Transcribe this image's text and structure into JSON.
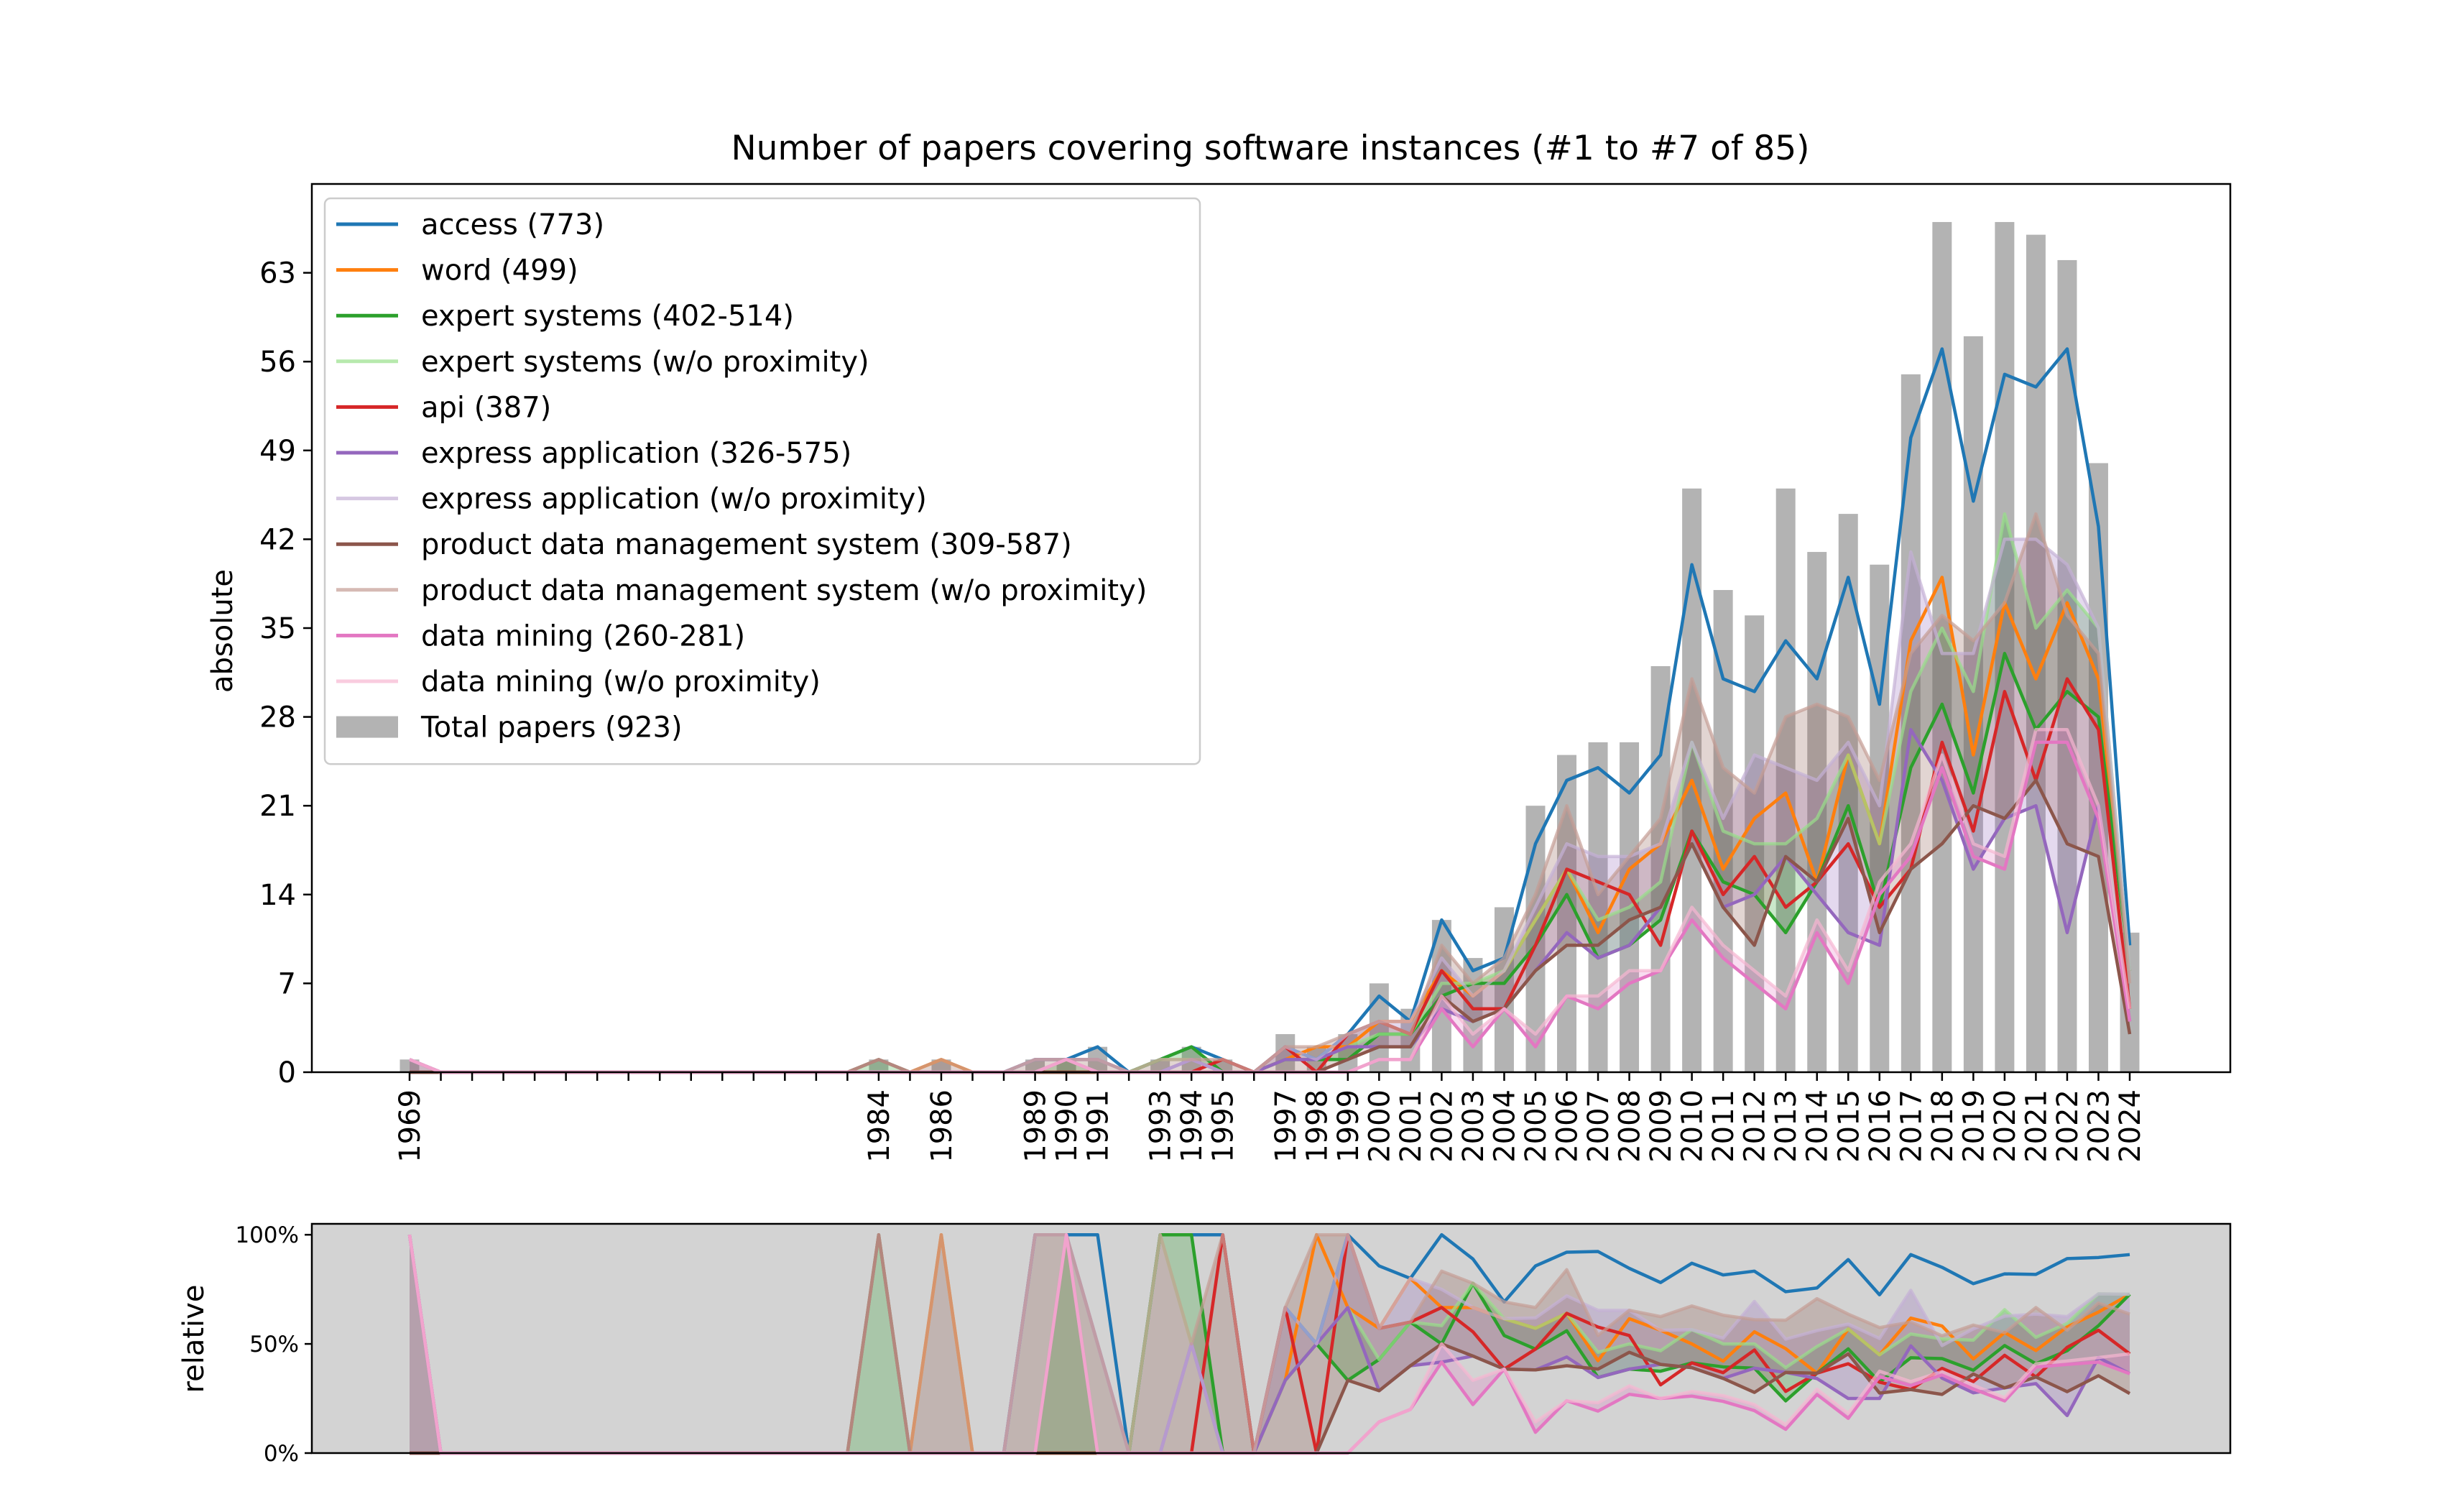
{
  "chart_data": [
    {
      "type": "line",
      "title": "Number of papers covering software instances (#1 to #7 of 85)",
      "ylabel": "absolute",
      "ylim": [
        0,
        70
      ],
      "yticks": [
        0,
        7,
        14,
        21,
        28,
        35,
        42,
        49,
        56,
        63
      ],
      "x_labels": [
        "1969",
        "1984",
        "1986",
        "1989",
        "1990",
        "1991",
        "1993",
        "1994",
        "1995",
        "1997",
        "1998",
        "1999",
        "2000",
        "2001",
        "2002",
        "2003",
        "2004",
        "2005",
        "2006",
        "2007",
        "2008",
        "2009",
        "2010",
        "2011",
        "2012",
        "2013",
        "2014",
        "2015",
        "2016",
        "2017",
        "2018",
        "2019",
        "2020",
        "2021",
        "2022",
        "2023",
        "2024"
      ],
      "x": [
        1969,
        1970,
        1971,
        1972,
        1973,
        1974,
        1975,
        1976,
        1977,
        1978,
        1979,
        1980,
        1981,
        1982,
        1983,
        1984,
        1985,
        1986,
        1987,
        1988,
        1989,
        1990,
        1991,
        1992,
        1993,
        1994,
        1995,
        1996,
        1997,
        1998,
        1999,
        2000,
        2001,
        2002,
        2003,
        2004,
        2005,
        2006,
        2007,
        2008,
        2009,
        2010,
        2011,
        2012,
        2013,
        2014,
        2015,
        2016,
        2017,
        2018,
        2019,
        2020,
        2021,
        2022,
        2023,
        2024
      ],
      "bars": {
        "name": "Total papers (923)",
        "color": "#808080",
        "values": [
          1,
          0,
          0,
          0,
          0,
          0,
          0,
          0,
          0,
          0,
          0,
          0,
          0,
          0,
          0,
          1,
          0,
          1,
          0,
          0,
          1,
          1,
          2,
          0,
          1,
          2,
          1,
          0,
          3,
          2,
          3,
          7,
          5,
          12,
          9,
          13,
          21,
          25,
          26,
          26,
          32,
          46,
          38,
          36,
          46,
          41,
          44,
          40,
          55,
          67,
          58,
          67,
          66,
          64,
          48,
          11
        ]
      },
      "series": [
        {
          "name": "access (773)",
          "color": "#1f77b4",
          "values": [
            1,
            0,
            0,
            0,
            0,
            0,
            0,
            0,
            0,
            0,
            0,
            0,
            0,
            0,
            0,
            0,
            0,
            0,
            0,
            0,
            1,
            1,
            2,
            0,
            1,
            2,
            1,
            0,
            2,
            1,
            3,
            6,
            4,
            12,
            8,
            9,
            18,
            23,
            24,
            22,
            25,
            40,
            31,
            30,
            34,
            31,
            39,
            29,
            50,
            57,
            45,
            55,
            54,
            57,
            43,
            10
          ]
        },
        {
          "name": "word (499)",
          "color": "#ff7f0e",
          "values": [
            0,
            0,
            0,
            0,
            0,
            0,
            0,
            0,
            0,
            0,
            0,
            0,
            0,
            0,
            0,
            0,
            0,
            1,
            0,
            0,
            0,
            0,
            0,
            0,
            0,
            0,
            0,
            0,
            1,
            2,
            2,
            4,
            4,
            8,
            6,
            8,
            12,
            16,
            11,
            16,
            18,
            23,
            16,
            20,
            22,
            15,
            25,
            18,
            34,
            39,
            25,
            37,
            31,
            37,
            31,
            8
          ]
        },
        {
          "name": "expert systems (402-514)",
          "color": "#2ca02c",
          "values": [
            0,
            0,
            0,
            0,
            0,
            0,
            0,
            0,
            0,
            0,
            0,
            0,
            0,
            0,
            0,
            0,
            0,
            0,
            0,
            0,
            0,
            0,
            0,
            0,
            1,
            2,
            0,
            0,
            1,
            1,
            1,
            3,
            3,
            6,
            7,
            7,
            10,
            14,
            9,
            10,
            12,
            19,
            15,
            14,
            11,
            15,
            21,
            13,
            24,
            29,
            22,
            33,
            27,
            30,
            28,
            8
          ]
        },
        {
          "name": "expert systems (w/o proximity)",
          "color": "#98df8a",
          "alpha": 0.7,
          "values": [
            0,
            0,
            0,
            0,
            0,
            0,
            0,
            0,
            0,
            0,
            0,
            0,
            0,
            0,
            0,
            1,
            0,
            0,
            0,
            0,
            0,
            1,
            0,
            0,
            1,
            1,
            0,
            0,
            1,
            1,
            2,
            3,
            3,
            7,
            7,
            8,
            12,
            16,
            12,
            13,
            15,
            26,
            19,
            18,
            18,
            20,
            25,
            18,
            30,
            35,
            30,
            44,
            35,
            38,
            35,
            8
          ]
        },
        {
          "name": "api (387)",
          "color": "#d62728",
          "values": [
            0,
            0,
            0,
            0,
            0,
            0,
            0,
            0,
            0,
            0,
            0,
            0,
            0,
            0,
            0,
            0,
            0,
            0,
            0,
            0,
            0,
            0,
            0,
            0,
            0,
            0,
            1,
            0,
            2,
            0,
            3,
            4,
            3,
            8,
            5,
            5,
            10,
            16,
            15,
            14,
            10,
            19,
            14,
            17,
            13,
            15,
            18,
            13,
            16,
            26,
            19,
            30,
            23,
            31,
            27,
            5
          ]
        },
        {
          "name": "express application (326-575)",
          "color": "#9467bd",
          "values": [
            0,
            0,
            0,
            0,
            0,
            0,
            0,
            0,
            0,
            0,
            0,
            0,
            0,
            0,
            0,
            0,
            0,
            0,
            0,
            0,
            1,
            1,
            1,
            0,
            0,
            1,
            0,
            0,
            1,
            1,
            2,
            2,
            2,
            5,
            4,
            5,
            8,
            11,
            9,
            10,
            13,
            18,
            13,
            14,
            17,
            14,
            11,
            10,
            27,
            23,
            16,
            20,
            21,
            11,
            21,
            4
          ]
        },
        {
          "name": "express application (w/o proximity)",
          "color": "#c5b0d5",
          "alpha": 0.7,
          "values": [
            1,
            0,
            0,
            0,
            0,
            0,
            0,
            0,
            0,
            0,
            0,
            0,
            0,
            0,
            0,
            0,
            0,
            0,
            0,
            0,
            1,
            1,
            1,
            0,
            0,
            1,
            0,
            0,
            2,
            1,
            3,
            4,
            4,
            9,
            6,
            8,
            13,
            18,
            17,
            17,
            18,
            26,
            20,
            25,
            24,
            23,
            26,
            21,
            41,
            33,
            33,
            42,
            42,
            40,
            35,
            8
          ]
        },
        {
          "name": "product data management system (309-587)",
          "color": "#8c564b",
          "values": [
            0,
            0,
            0,
            0,
            0,
            0,
            0,
            0,
            0,
            0,
            0,
            0,
            0,
            0,
            0,
            1,
            0,
            0,
            0,
            0,
            0,
            0,
            0,
            0,
            0,
            0,
            0,
            0,
            0,
            0,
            1,
            2,
            2,
            6,
            4,
            5,
            8,
            10,
            10,
            12,
            13,
            18,
            13,
            10,
            17,
            15,
            20,
            11,
            16,
            18,
            21,
            20,
            23,
            18,
            17,
            3
          ]
        },
        {
          "name": "product data management system (w/o proximity)",
          "color": "#c49c94",
          "alpha": 0.7,
          "values": [
            1,
            0,
            0,
            0,
            0,
            0,
            0,
            0,
            0,
            0,
            0,
            0,
            0,
            0,
            0,
            1,
            0,
            1,
            0,
            0,
            1,
            1,
            1,
            0,
            1,
            1,
            1,
            0,
            2,
            2,
            3,
            4,
            3,
            10,
            7,
            9,
            14,
            21,
            14,
            17,
            20,
            31,
            24,
            22,
            28,
            29,
            28,
            23,
            33,
            36,
            34,
            37,
            44,
            36,
            33,
            7
          ]
        },
        {
          "name": "data mining (260-281)",
          "color": "#e377c2",
          "values": [
            1,
            0,
            0,
            0,
            0,
            0,
            0,
            0,
            0,
            0,
            0,
            0,
            0,
            0,
            0,
            0,
            0,
            0,
            0,
            0,
            0,
            1,
            0,
            0,
            0,
            0,
            0,
            0,
            0,
            0,
            0,
            1,
            1,
            5,
            2,
            5,
            2,
            6,
            5,
            7,
            8,
            12,
            9,
            7,
            5,
            11,
            7,
            14,
            17,
            24,
            17,
            16,
            26,
            26,
            20,
            4
          ]
        },
        {
          "name": "data mining (w/o proximity)",
          "color": "#f7b6d2",
          "alpha": 0.7,
          "values": [
            1,
            0,
            0,
            0,
            0,
            0,
            0,
            0,
            0,
            0,
            0,
            0,
            0,
            0,
            0,
            0,
            0,
            0,
            0,
            0,
            0,
            1,
            0,
            0,
            0,
            0,
            0,
            0,
            0,
            0,
            0,
            1,
            1,
            6,
            3,
            5,
            3,
            6,
            6,
            8,
            8,
            13,
            10,
            8,
            6,
            12,
            8,
            15,
            18,
            25,
            18,
            17,
            27,
            27,
            21,
            5
          ]
        }
      ],
      "legend": {
        "placement": "top-left"
      }
    },
    {
      "type": "line",
      "ylabel": "relative",
      "ylim": [
        0,
        1.05
      ],
      "yticks": [
        "0%",
        "50%",
        "100%"
      ],
      "background": "#d3d3d3",
      "note_series": "each series = absolute / Total papers"
    }
  ]
}
